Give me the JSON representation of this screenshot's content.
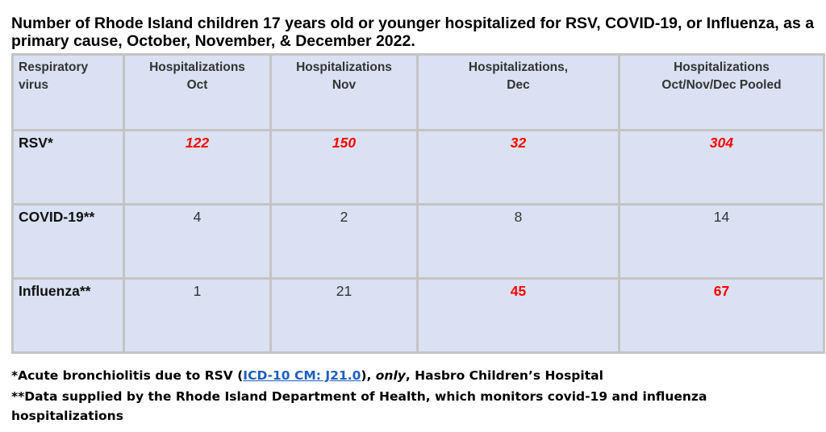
{
  "title": "Number of Rhode Island children 17 years old or younger hospitalized for RSV, COVID-19, or Influenza, as a primary cause, October, November, & December 2022.",
  "table": {
    "headers": {
      "virus": [
        "Respiratory",
        "virus"
      ],
      "oct": [
        "Hospitalizations",
        "Oct"
      ],
      "nov": [
        "Hospitalizations",
        "Nov"
      ],
      "dec": [
        "Hospitalizations,",
        "Dec"
      ],
      "pooled": [
        "Hospitalizations",
        "Oct/Nov/Dec Pooled"
      ]
    },
    "rows": [
      {
        "virus": "RSV*",
        "oct": "122",
        "nov": "150",
        "dec": "32",
        "pooled": "304"
      },
      {
        "virus": "COVID-19**",
        "oct": "4",
        "nov": "2",
        "dec": "8",
        "pooled": "14"
      },
      {
        "virus": "Influenza**",
        "oct": "1",
        "nov": "21",
        "dec": "45",
        "pooled": "67"
      }
    ],
    "colors": {
      "highlight": "#ff0000",
      "cell_bg": "#d9e1f2",
      "border": "#c4c4c4"
    }
  },
  "footnotes": {
    "note1_prefix": "*Acute bronchiolitis due to RSV (",
    "note1_link": "ICD-10 CM: J21.0",
    "note1_mid": "), ",
    "note1_em": "only",
    "note1_suffix": ", Hasbro Children’s Hospital",
    "note2": "**Data supplied by the Rhode Island Department of Health, which monitors covid-19 and influenza hospitalizations"
  }
}
